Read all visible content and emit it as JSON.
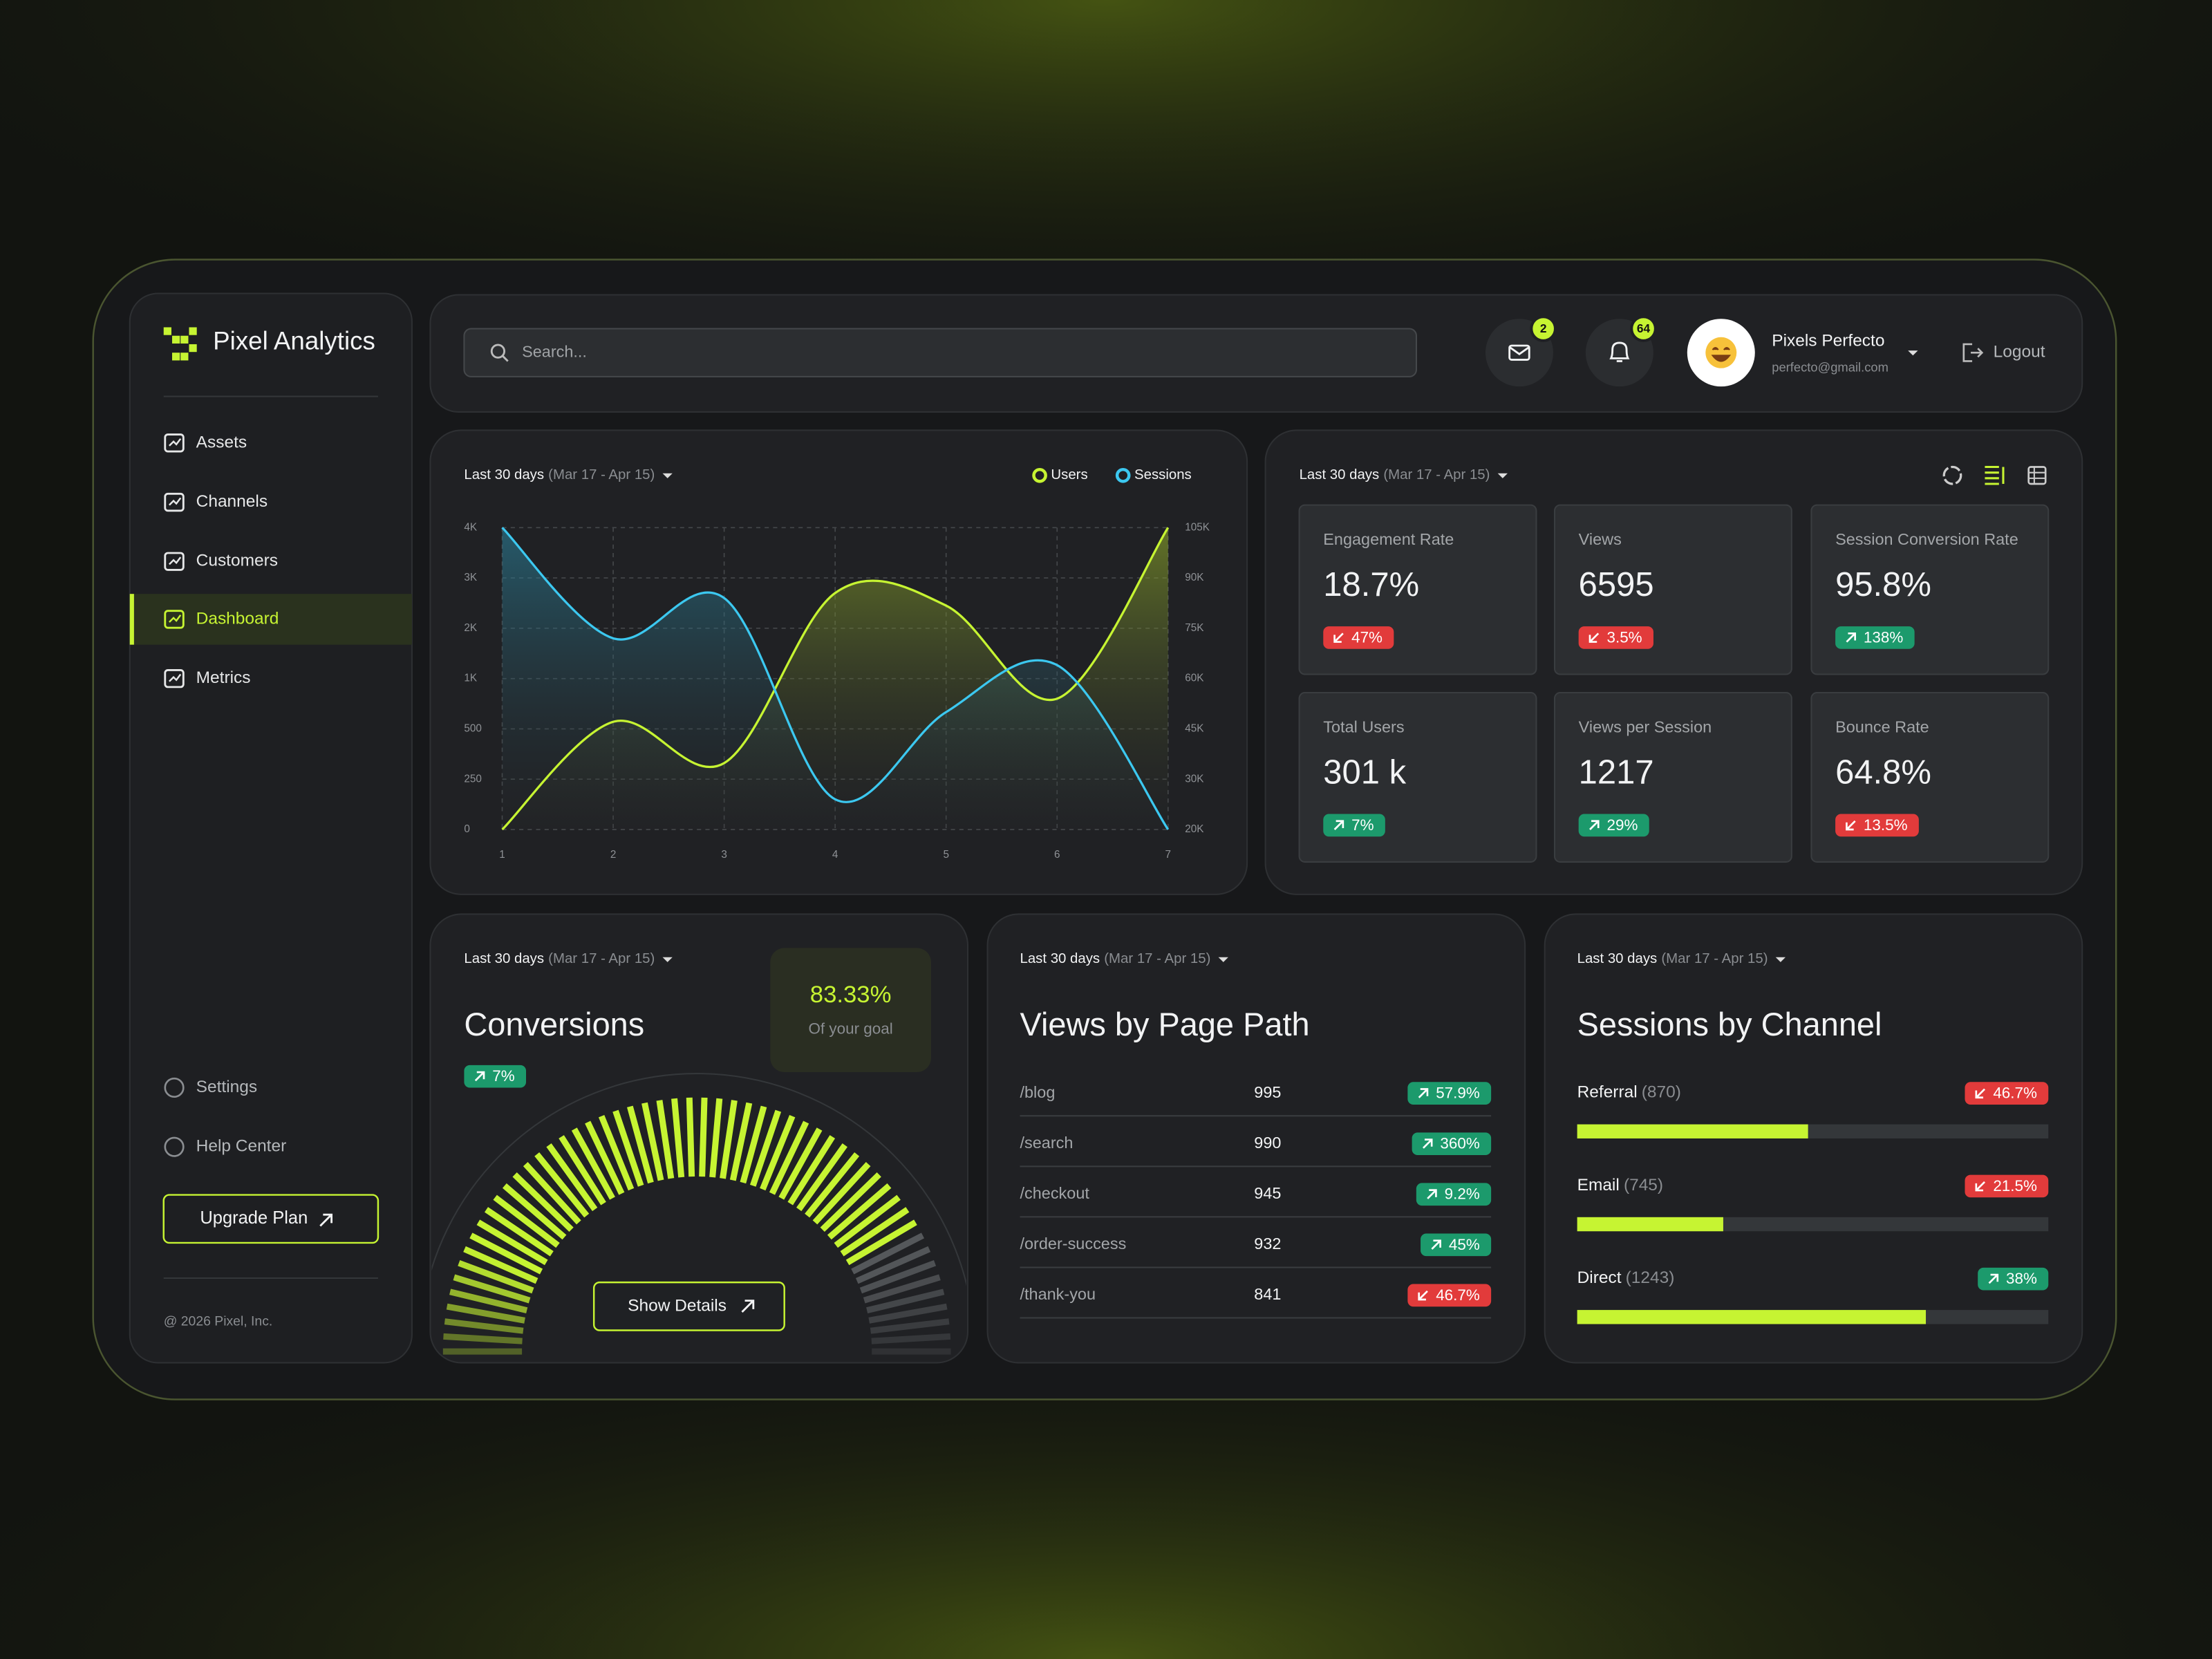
{
  "sidebar": {
    "brand": "Pixel Analytics",
    "nav": [
      "Assets",
      "Channels",
      "Customers",
      "Dashboard",
      "Metrics"
    ],
    "footer_nav": [
      "Settings",
      "Help Center"
    ],
    "upgrade": "Upgrade Plan",
    "copyright": "@ 2026 Pixel, Inc."
  },
  "header": {
    "search_placeholder": "Search...",
    "mail_count": 2,
    "notification_count": 64,
    "user": {
      "name": "Pixels Perfecto",
      "email": "perfecto@gmail.com"
    },
    "logout": "Logout"
  },
  "chart_data": {
    "type": "line",
    "filter": {
      "label": "Last 30 days",
      "range": "(Mar 17 - Apr 15)"
    },
    "x": [
      1,
      2,
      3,
      4,
      5,
      6,
      7
    ],
    "xlim": [
      1,
      7
    ],
    "xticks": [
      1,
      2,
      3,
      4,
      5,
      6,
      7
    ],
    "ylim": [
      0,
      4000
    ],
    "yticks": [
      0,
      250,
      500,
      {
        "value": 1000,
        "label": "1K"
      },
      {
        "value": 2000,
        "label": "2K"
      },
      {
        "value": 3000,
        "label": "3K"
      },
      {
        "value": 4000,
        "label": "4K"
      }
    ],
    "y2lim": [
      20000,
      105000
    ],
    "y2ticks": [
      {
        "value": 20000,
        "label": "20K"
      },
      {
        "value": 30000,
        "label": "30K"
      },
      {
        "value": 45000,
        "label": "45K"
      },
      {
        "value": 60000,
        "label": "60K"
      },
      {
        "value": 75000,
        "label": "75K"
      },
      {
        "value": 90000,
        "label": "90K"
      },
      {
        "value": 105000,
        "label": "105K"
      }
    ],
    "grid": true,
    "series": [
      {
        "name": "Users",
        "color": "#c6f432",
        "values": [
          0,
          570,
          330,
          2700,
          2450,
          800,
          4000
        ]
      },
      {
        "name": "Sessions",
        "color": "#3cc8f0",
        "axis": "y2",
        "values": [
          105000,
          72000,
          84000,
          26000,
          50000,
          64000,
          20000
        ]
      }
    ]
  },
  "metrics": {
    "filter": {
      "label": "Last 30 days",
      "range": "(Mar 17 - Apr 15)"
    },
    "cards": [
      {
        "label": "Engagement Rate",
        "value": "18.7%",
        "change": "47%",
        "trend": "down"
      },
      {
        "label": "Views",
        "value": "6595",
        "change": "3.5%",
        "trend": "down"
      },
      {
        "label": "Session Conversion Rate",
        "value": "95.8%",
        "change": "138%",
        "trend": "up"
      },
      {
        "label": "Total Users",
        "value": "301 k",
        "change": "7%",
        "trend": "up"
      },
      {
        "label": "Views per Session",
        "value": "1217",
        "change": "29%",
        "trend": "up"
      },
      {
        "label": "Bounce Rate",
        "value": "64.8%",
        "change": "13.5%",
        "trend": "down"
      }
    ]
  },
  "conversions": {
    "filter": {
      "label": "Last 30 days",
      "range": "(Mar 17 - Apr 15)"
    },
    "title": "Conversions",
    "change": "7%",
    "trend": "up",
    "goal": {
      "value": 83.33,
      "label": "83.33%"
    },
    "goal_caption": "Of your goal",
    "action": "Show Details"
  },
  "page_views": {
    "filter": {
      "label": "Last 30 days",
      "range": "(Mar 17 - Apr 15)"
    },
    "title": "Views by Page Path",
    "rows": [
      {
        "path": "/blog",
        "views": 995,
        "change": "57.9%",
        "trend": "up"
      },
      {
        "path": "/search",
        "views": 990,
        "change": "360%",
        "trend": "up"
      },
      {
        "path": "/checkout",
        "views": 945,
        "change": "9.2%",
        "trend": "up"
      },
      {
        "path": "/order-success",
        "views": 932,
        "change": "45%",
        "trend": "up"
      },
      {
        "path": "/thank-you",
        "views": 841,
        "change": "46.7%",
        "trend": "down"
      }
    ]
  },
  "channels": {
    "filter": {
      "label": "Last 30 days",
      "range": "(Mar 17 - Apr 15)"
    },
    "title": "Sessions by Channel",
    "rows": [
      {
        "name": "Referral",
        "count": "(870)",
        "change": "46.7%",
        "trend": "down",
        "share": 49
      },
      {
        "name": "Email",
        "count": "(745)",
        "change": "21.5%",
        "trend": "down",
        "share": 31
      },
      {
        "name": "Direct",
        "count": "(1243)",
        "change": "38%",
        "trend": "up",
        "share": 74
      }
    ]
  }
}
